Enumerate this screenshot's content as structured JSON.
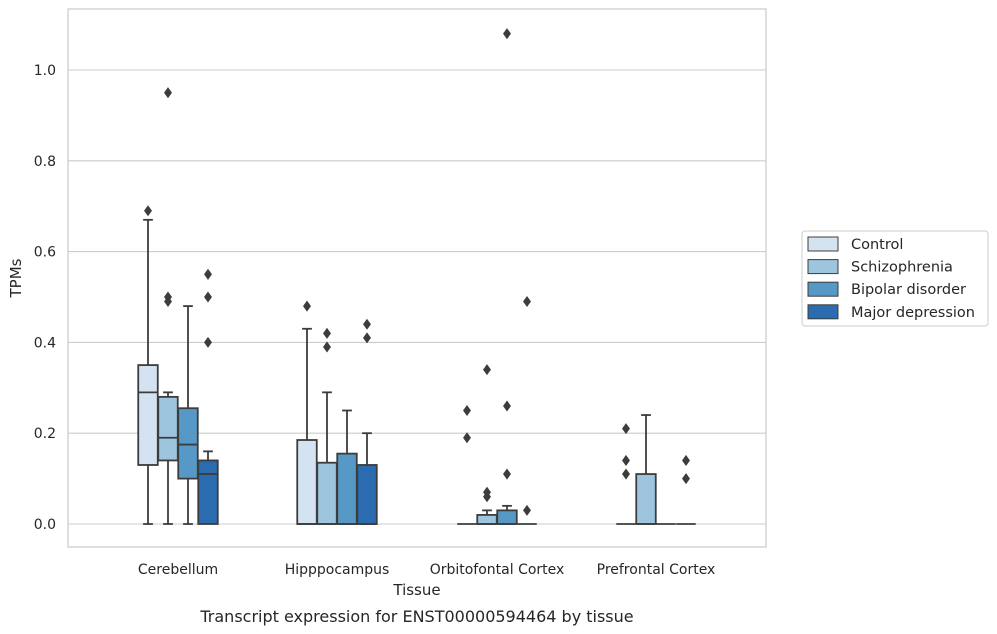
{
  "chart_data": {
    "type": "box",
    "xlabel": "Tissue",
    "ylabel": "TPMs",
    "caption": "Transcript expression for ENST00000594464 by tissue",
    "ylim": [
      -0.05,
      1.135
    ],
    "yticks": [
      0.0,
      0.2,
      0.4,
      0.6,
      0.8,
      1.0
    ],
    "ytick_labels": [
      "0.0",
      "0.2",
      "0.4",
      "0.6",
      "0.8",
      "1.0"
    ],
    "grid": "horizontal",
    "legend_position": "right",
    "categories": [
      "Cerebellum",
      "Hipppocampus",
      "Orbitofontal Cortex",
      "Prefrontal Cortex"
    ],
    "series": [
      {
        "name": "Control",
        "color": "#d4e3f1",
        "boxes": [
          {
            "whislo": 0.0,
            "q1": 0.13,
            "med": 0.29,
            "q3": 0.35,
            "whishi": 0.67,
            "fliers": [
              0.69
            ]
          },
          {
            "whislo": 0.0,
            "q1": 0.0,
            "med": 0.0,
            "q3": 0.185,
            "whishi": 0.43,
            "fliers": [
              0.48
            ]
          },
          {
            "whislo": 0.0,
            "q1": 0.0,
            "med": 0.0,
            "q3": 0.0,
            "whishi": 0.0,
            "fliers": [
              0.19,
              0.25
            ]
          },
          {
            "whislo": 0.0,
            "q1": 0.0,
            "med": 0.0,
            "q3": 0.0,
            "whishi": 0.0,
            "fliers": [
              0.11,
              0.14,
              0.21
            ]
          }
        ]
      },
      {
        "name": "Schizophrenia",
        "color": "#9dc6de",
        "boxes": [
          {
            "whislo": 0.0,
            "q1": 0.14,
            "med": 0.19,
            "q3": 0.28,
            "whishi": 0.29,
            "fliers": [
              0.49,
              0.5,
              0.95
            ]
          },
          {
            "whislo": 0.0,
            "q1": 0.0,
            "med": 0.0,
            "q3": 0.135,
            "whishi": 0.29,
            "fliers": [
              0.39,
              0.42
            ]
          },
          {
            "whislo": 0.0,
            "q1": 0.0,
            "med": 0.0,
            "q3": 0.02,
            "whishi": 0.03,
            "fliers": [
              0.06,
              0.07,
              0.34
            ]
          },
          {
            "whislo": 0.0,
            "q1": 0.0,
            "med": 0.0,
            "q3": 0.11,
            "whishi": 0.24,
            "fliers": []
          }
        ]
      },
      {
        "name": "Bipolar disorder",
        "color": "#5799c6",
        "boxes": [
          {
            "whislo": 0.0,
            "q1": 0.1,
            "med": 0.175,
            "q3": 0.255,
            "whishi": 0.48,
            "fliers": []
          },
          {
            "whislo": 0.0,
            "q1": 0.0,
            "med": 0.0,
            "q3": 0.155,
            "whishi": 0.25,
            "fliers": []
          },
          {
            "whislo": 0.0,
            "q1": 0.0,
            "med": 0.0,
            "q3": 0.03,
            "whishi": 0.04,
            "fliers": [
              0.11,
              0.26,
              1.08
            ]
          },
          {
            "whislo": 0.0,
            "q1": 0.0,
            "med": 0.0,
            "q3": 0.0,
            "whishi": 0.0,
            "fliers": []
          }
        ]
      },
      {
        "name": "Major depression",
        "color": "#2a6caf",
        "boxes": [
          {
            "whislo": 0.0,
            "q1": 0.0,
            "med": 0.11,
            "q3": 0.14,
            "whishi": 0.16,
            "fliers": [
              0.4,
              0.5,
              0.55
            ]
          },
          {
            "whislo": 0.0,
            "q1": 0.0,
            "med": 0.0,
            "q3": 0.13,
            "whishi": 0.2,
            "fliers": [
              0.41,
              0.44
            ]
          },
          {
            "whislo": 0.0,
            "q1": 0.0,
            "med": 0.0,
            "q3": 0.0,
            "whishi": 0.0,
            "fliers": [
              0.03,
              0.49
            ]
          },
          {
            "whislo": 0.0,
            "q1": 0.0,
            "med": 0.0,
            "q3": 0.0,
            "whishi": 0.0,
            "fliers": [
              0.1,
              0.14
            ]
          }
        ]
      }
    ]
  }
}
